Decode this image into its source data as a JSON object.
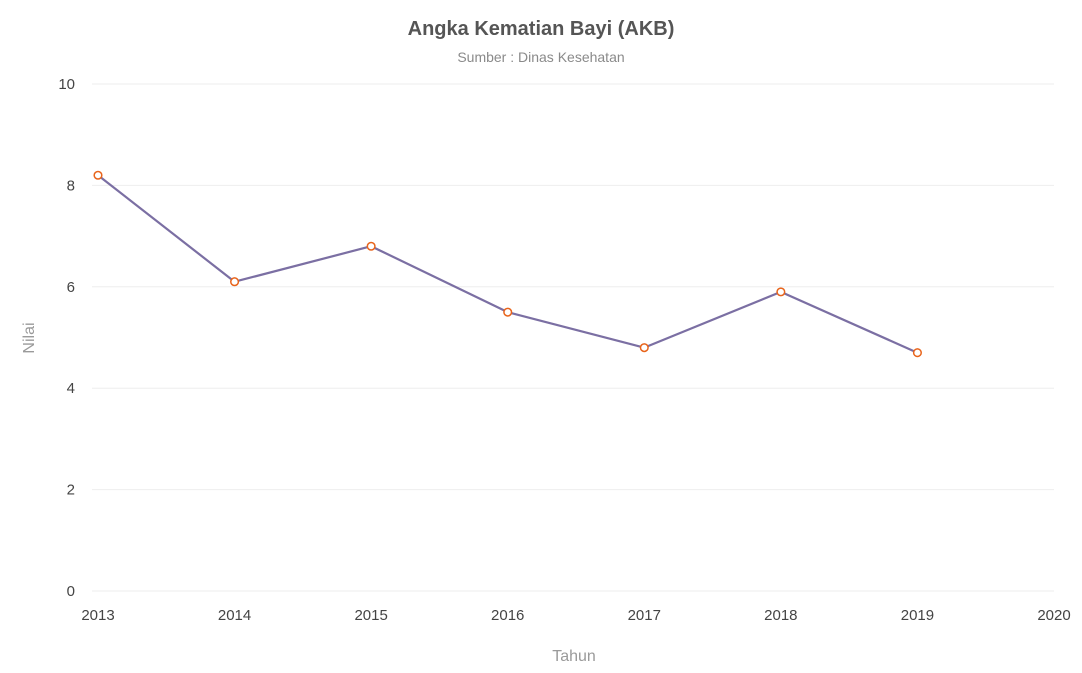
{
  "chart_data": {
    "type": "line",
    "title": "Angka Kematian Bayi (AKB)",
    "subtitle": "Sumber : Dinas Kesehatan",
    "xlabel": "Tahun",
    "ylabel": "Nilai",
    "x": [
      2013,
      2014,
      2015,
      2016,
      2017,
      2018,
      2019
    ],
    "series": [
      {
        "values": [
          8.2,
          6.1,
          6.8,
          5.5,
          4.8,
          5.9,
          4.7
        ]
      }
    ],
    "xlim": [
      2013,
      2020
    ],
    "ylim": [
      0,
      10
    ],
    "xticks": [
      "2013",
      "2014",
      "2015",
      "2016",
      "2017",
      "2018",
      "2019",
      "2020"
    ],
    "yticks": [
      "0",
      "2",
      "4",
      "6",
      "8",
      "10"
    ],
    "grid": true,
    "legend": "none",
    "colors": {
      "line": "#7b6fa3",
      "marker_stroke": "#e8641b",
      "marker_fill": "#ffffff",
      "grid": "#eeeeee"
    }
  }
}
